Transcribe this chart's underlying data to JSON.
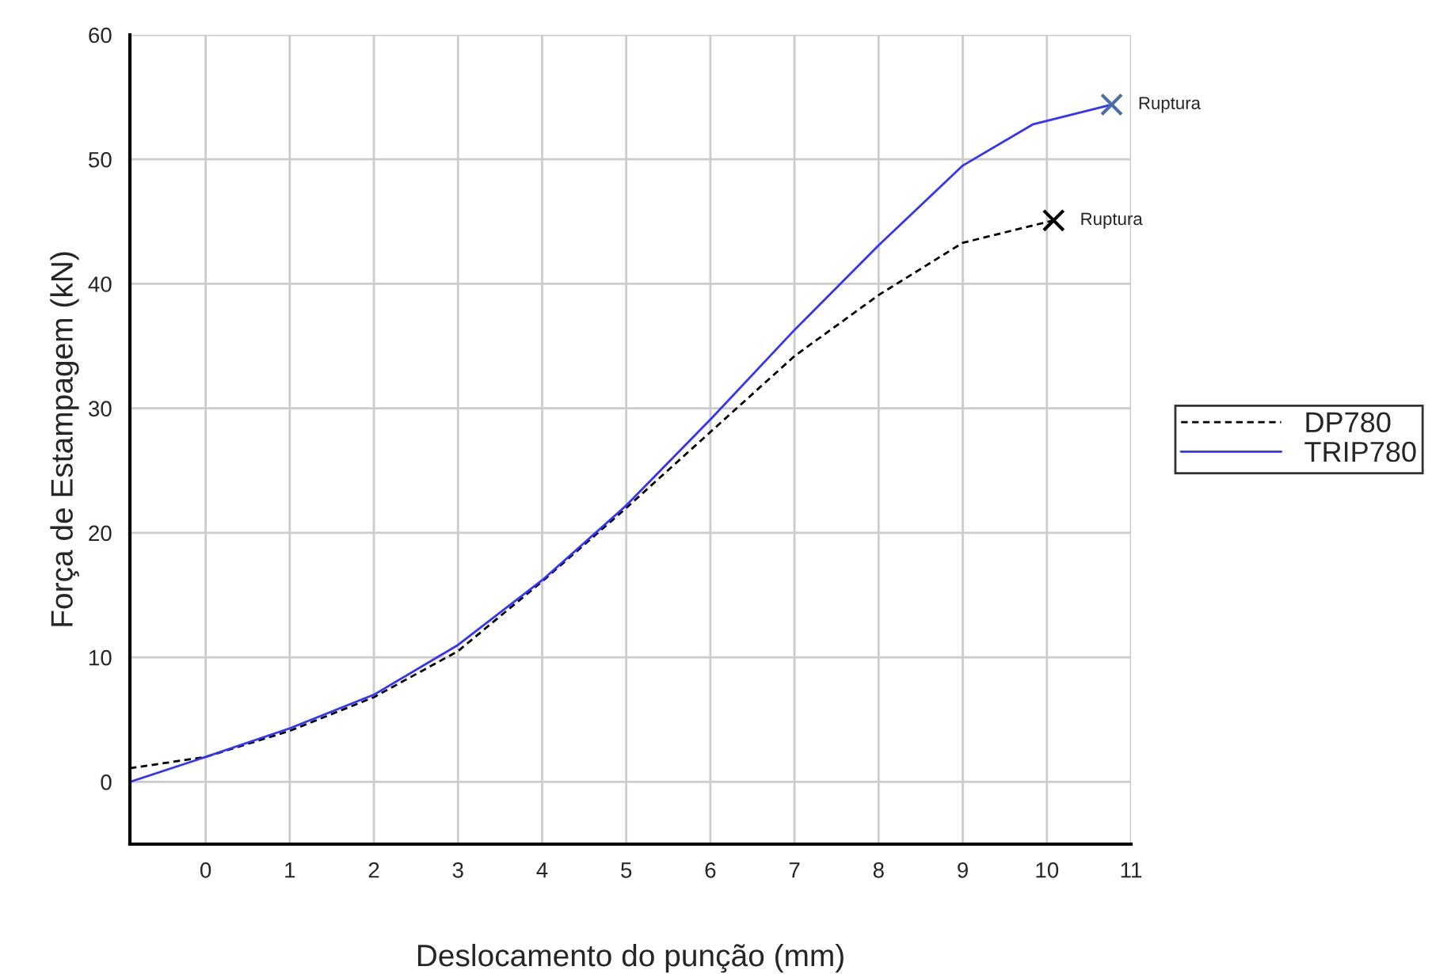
{
  "chart_data": {
    "type": "line",
    "xlabel": "Deslocamento do punção (mm)",
    "ylabel": "Força de Estampagem (kN)",
    "xlim": [
      -0.9,
      11
    ],
    "ylim": [
      -5,
      60
    ],
    "xticks": [
      0,
      1,
      2,
      3,
      4,
      5,
      6,
      7,
      8,
      9,
      10,
      11
    ],
    "yticks": [
      0,
      10,
      20,
      30,
      40,
      50,
      60
    ],
    "grid": true,
    "legend": "right",
    "series": [
      {
        "name": "DP780",
        "color": "#000000",
        "line_style": "dashed",
        "x": [
          -0.9,
          0,
          1,
          2,
          3,
          4,
          5,
          6,
          7,
          8,
          9,
          10.08
        ],
        "values": [
          1.1,
          2.0,
          4.1,
          6.8,
          10.5,
          16.1,
          22.0,
          28.1,
          34.2,
          39.1,
          43.3,
          45.1
        ]
      },
      {
        "name": "TRIP780",
        "color": "#3333ff",
        "line_style": "solid",
        "x": [
          -0.9,
          0,
          1,
          2,
          3,
          4,
          5,
          6,
          7,
          8,
          9,
          9.83,
          10.77
        ],
        "values": [
          0,
          2.0,
          4.3,
          7.0,
          11.0,
          16.2,
          22.2,
          29.1,
          36.3,
          43.1,
          49.5,
          52.8,
          54.4
        ]
      },
      {
        "type": "scatter",
        "color": "#000000",
        "marker": "cross",
        "x": [
          10.08
        ],
        "values": [
          45.1
        ]
      },
      {
        "type": "scatter",
        "color": "#4a6fa5",
        "marker": "cross",
        "x": [
          10.77
        ],
        "values": [
          54.4
        ]
      }
    ],
    "annotations": [
      {
        "text": "Ruptura",
        "x": 10.77,
        "y": 54.4
      },
      {
        "text": "Ruptura",
        "x": 10.08,
        "y": 45.1
      }
    ]
  }
}
